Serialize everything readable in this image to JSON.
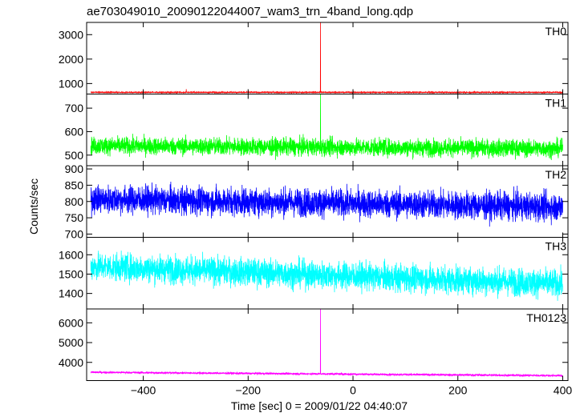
{
  "chart_data": {
    "type": "line",
    "title": "ae703049010_20090122044007_wam3_trn_4band_long.qdp",
    "xlabel": "Time [sec] 0 = 2009/01/22 04:40:07",
    "ylabel": "Counts/sec",
    "xlim": [
      -508,
      410
    ],
    "xticks": [
      -400,
      -200,
      0,
      200,
      400
    ],
    "grid": false,
    "panels": [
      {
        "name": "TH0",
        "color": "#ff0000",
        "ylim": [
          570,
          3500
        ],
        "yticks": [
          1000,
          2000,
          3000
        ],
        "x_range": [
          -500,
          400
        ],
        "baseline": 640,
        "noise": 15,
        "trend": 0,
        "spikes": [
          {
            "x": -62,
            "y": 3500
          },
          {
            "x": -318,
            "y": 770
          }
        ]
      },
      {
        "name": "TH1",
        "color": "#00ff00",
        "ylim": [
          455,
          760
        ],
        "yticks": [
          500,
          600,
          700
        ],
        "x_range": [
          -500,
          400
        ],
        "baseline": 540,
        "noise": 26,
        "trend": -12,
        "spikes": [
          {
            "x": -62,
            "y": 760
          }
        ]
      },
      {
        "name": "TH2",
        "color": "#0000ff",
        "ylim": [
          690,
          910
        ],
        "yticks": [
          700,
          750,
          800,
          850,
          900
        ],
        "x_range": [
          -500,
          400
        ],
        "baseline": 808,
        "noise": 30,
        "trend": -25,
        "spikes": []
      },
      {
        "name": "TH3",
        "color": "#00ffff",
        "ylim": [
          1320,
          1690
        ],
        "yticks": [
          1400,
          1500,
          1600
        ],
        "x_range": [
          -500,
          400
        ],
        "baseline": 1540,
        "noise": 50,
        "trend": -90,
        "spikes": []
      },
      {
        "name": "TH0123",
        "color": "#ff00ff",
        "ylim": [
          3080,
          6700
        ],
        "yticks": [
          4000,
          5000,
          6000
        ],
        "x_range": [
          -500,
          400
        ],
        "baseline": 3500,
        "noise": 35,
        "trend": -170,
        "spikes": [
          {
            "x": -62,
            "y": 6700
          }
        ]
      }
    ]
  }
}
